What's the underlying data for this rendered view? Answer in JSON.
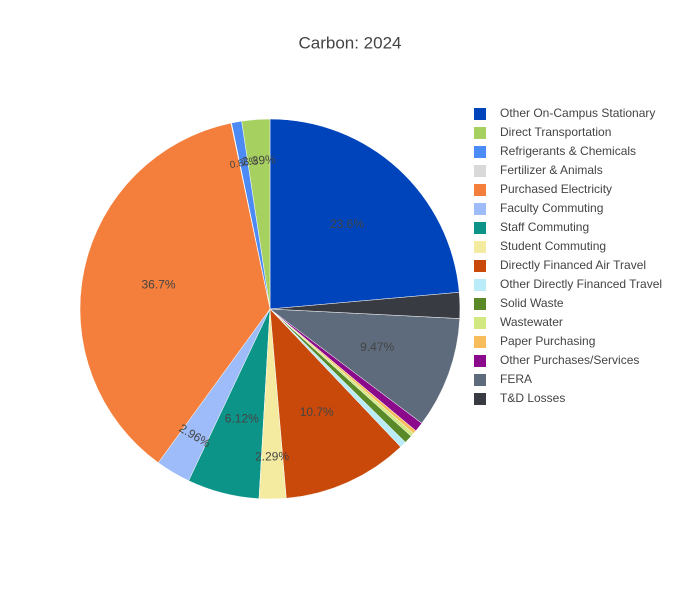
{
  "chart_data": {
    "type": "pie",
    "title": "Carbon: 2024",
    "categories": [
      "Other On-Campus Stationary",
      "Direct Transportation",
      "Refrigerants & Chemicals",
      "Fertilizer & Animals",
      "Purchased Electricity",
      "Faculty Commuting",
      "Staff Commuting",
      "Student Commuting",
      "Directly Financed Air Travel",
      "Other Directly Financed Travel",
      "Solid Waste",
      "Wastewater",
      "Paper Purchasing",
      "Other Purchases/Services",
      "FERA",
      "T&D Losses"
    ],
    "values": [
      23.6,
      2.39,
      0.86,
      0.05,
      36.7,
      2.96,
      6.12,
      2.29,
      10.7,
      0.56,
      0.7,
      0.3,
      0.3,
      0.8,
      9.47,
      2.2
    ],
    "value_labels": [
      "23.6%",
      "2.39%",
      "0.86%",
      null,
      "36.7%",
      "2.96%",
      "6.12%",
      "2.29%",
      "10.7%",
      null,
      null,
      null,
      null,
      null,
      "9.47%",
      null
    ],
    "colors": [
      "#0044bb",
      "#a6d160",
      "#4c8bf5",
      "#d9d9d9",
      "#f47f3c",
      "#9dbcf9",
      "#0d9488",
      "#f4eba1",
      "#c9490b",
      "#b9ecf7",
      "#5a8a28",
      "#d2e880",
      "#f7bd5b",
      "#8b0a8b",
      "#5e6b7d",
      "#383b42"
    ],
    "direction": "counterclockwise",
    "legend": "right"
  }
}
